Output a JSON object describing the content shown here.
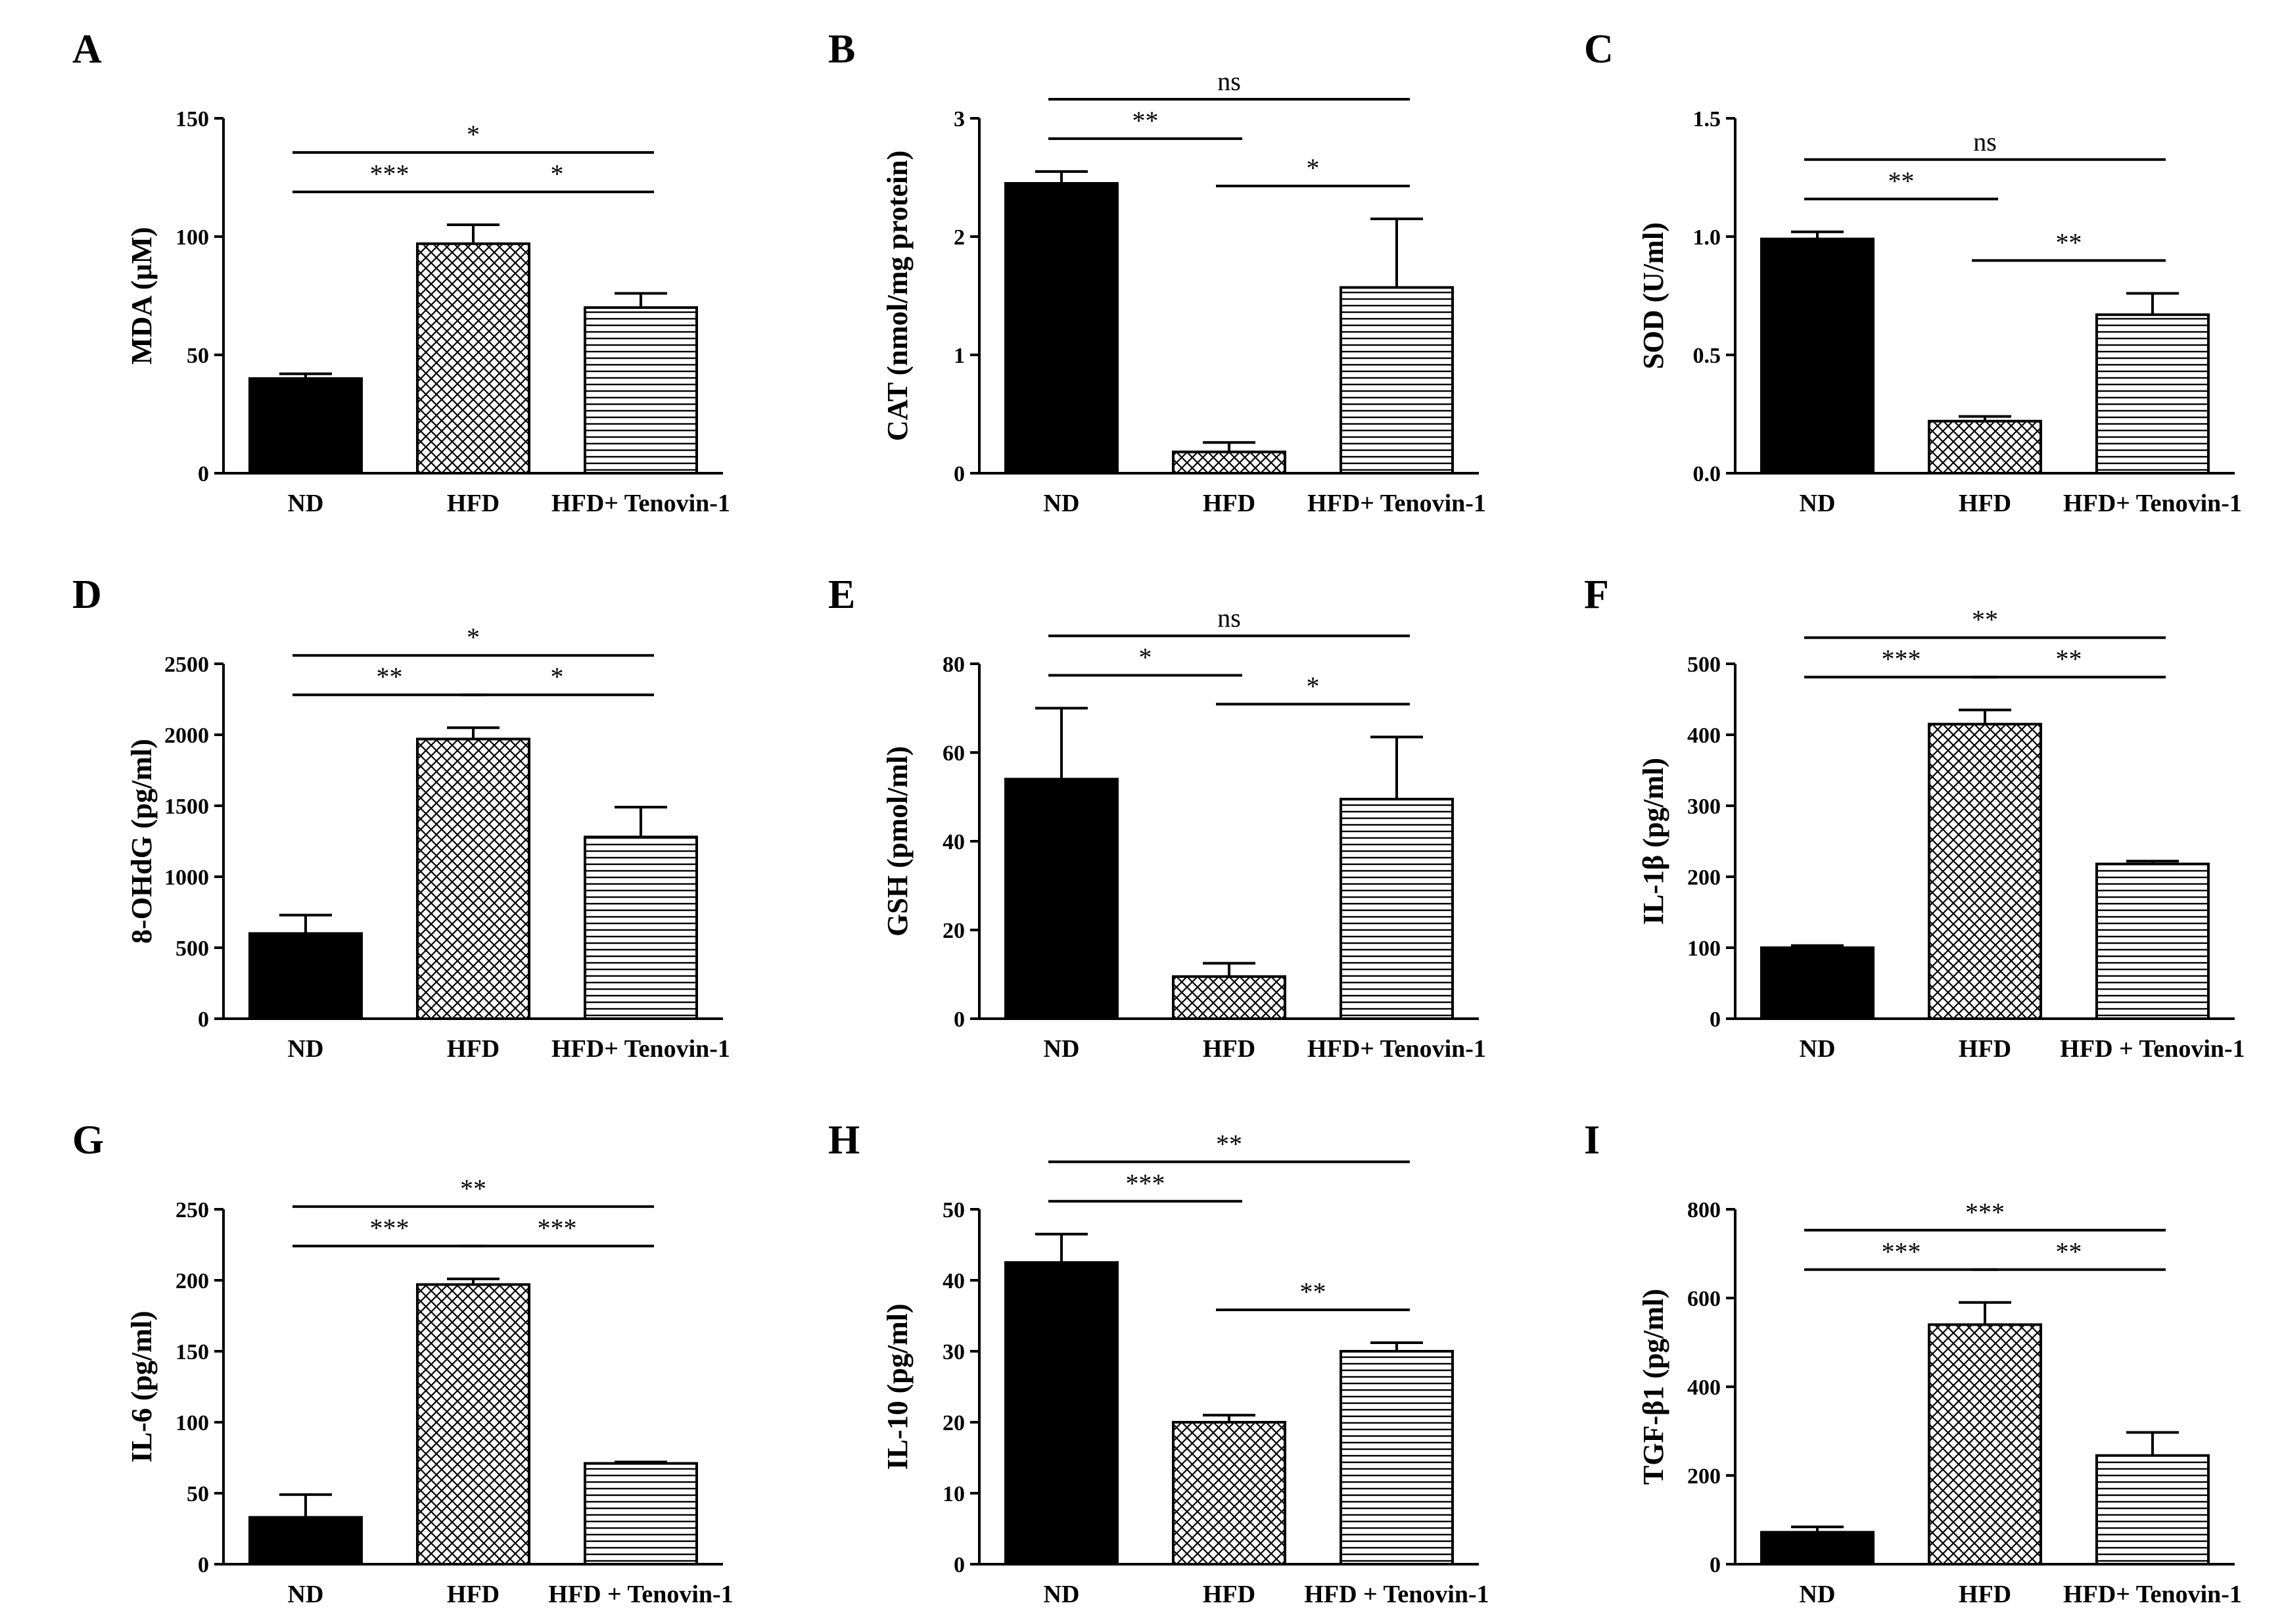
{
  "chart_data": [
    {
      "panel": "A",
      "type": "bar",
      "ylabel": "MDA (μM)",
      "ylim": [
        0,
        150
      ],
      "yticks": [
        "0",
        "50",
        "100",
        "150"
      ],
      "categories": [
        "ND",
        "HFD",
        "HFD+ Tenovin-1"
      ],
      "values": [
        40,
        97,
        70
      ],
      "errors": [
        2,
        8,
        6
      ],
      "patterns": [
        "solid",
        "cross",
        "hlines"
      ],
      "sig": [
        {
          "a": 0,
          "b": 1,
          "text": "***"
        },
        {
          "a": 1,
          "b": 2,
          "text": "*"
        },
        {
          "a": 0,
          "b": 2,
          "text": "*"
        }
      ]
    },
    {
      "panel": "B",
      "type": "bar",
      "ylabel": "CAT (nmol/mg protein)",
      "ylim": [
        0,
        3
      ],
      "yticks": [
        "0",
        "1",
        "2",
        "3"
      ],
      "categories": [
        "ND",
        "HFD",
        "HFD+ Tenovin-1"
      ],
      "values": [
        2.45,
        0.18,
        1.57
      ],
      "errors": [
        0.1,
        0.08,
        0.58
      ],
      "patterns": [
        "solid",
        "cross",
        "hlines"
      ],
      "sig": [
        {
          "a": 0,
          "b": 1,
          "text": "**"
        },
        {
          "a": 1,
          "b": 2,
          "text": "*"
        },
        {
          "a": 0,
          "b": 2,
          "text": "ns"
        }
      ]
    },
    {
      "panel": "C",
      "type": "bar",
      "ylabel": "SOD (U/ml)",
      "ylim": [
        0,
        1.5
      ],
      "yticks": [
        "0.0",
        "0.5",
        "1.0",
        "1.5"
      ],
      "categories": [
        "ND",
        "HFD",
        "HFD+ Tenovin-1"
      ],
      "values": [
        0.99,
        0.22,
        0.67
      ],
      "errors": [
        0.03,
        0.02,
        0.09
      ],
      "patterns": [
        "solid",
        "cross",
        "hlines"
      ],
      "sig": [
        {
          "a": 0,
          "b": 1,
          "text": "**"
        },
        {
          "a": 1,
          "b": 2,
          "text": "**"
        },
        {
          "a": 0,
          "b": 2,
          "text": "ns"
        }
      ]
    },
    {
      "panel": "D",
      "type": "bar",
      "ylabel": "8-OHdG (pg/ml)",
      "ylim": [
        0,
        2500
      ],
      "yticks": [
        "0",
        "500",
        "1000",
        "1500",
        "2000",
        "2500"
      ],
      "categories": [
        "ND",
        "HFD",
        "HFD+ Tenovin-1"
      ],
      "values": [
        600,
        1970,
        1280
      ],
      "errors": [
        130,
        80,
        210
      ],
      "patterns": [
        "solid",
        "cross",
        "hlines"
      ],
      "sig": [
        {
          "a": 0,
          "b": 1,
          "text": "**"
        },
        {
          "a": 1,
          "b": 2,
          "text": "*"
        },
        {
          "a": 0,
          "b": 2,
          "text": "*"
        }
      ]
    },
    {
      "panel": "E",
      "type": "bar",
      "ylabel": "GSH (pmol/ml)",
      "ylim": [
        0,
        80
      ],
      "yticks": [
        "0",
        "20",
        "40",
        "60",
        "80"
      ],
      "categories": [
        "ND",
        "HFD",
        "HFD+ Tenovin-1"
      ],
      "values": [
        54,
        9.5,
        49.5
      ],
      "errors": [
        16,
        3,
        14
      ],
      "patterns": [
        "solid",
        "cross",
        "hlines"
      ],
      "sig": [
        {
          "a": 0,
          "b": 1,
          "text": "*"
        },
        {
          "a": 1,
          "b": 2,
          "text": "*"
        },
        {
          "a": 0,
          "b": 2,
          "text": "ns"
        }
      ]
    },
    {
      "panel": "F",
      "type": "bar",
      "ylabel": "IL-1β (pg/ml)",
      "ylim": [
        0,
        500
      ],
      "yticks": [
        "0",
        "100",
        "200",
        "300",
        "400",
        "500"
      ],
      "categories": [
        "ND",
        "HFD",
        "HFD + Tenovin-1"
      ],
      "values": [
        100,
        415,
        218
      ],
      "errors": [
        3,
        20,
        4
      ],
      "patterns": [
        "solid",
        "cross",
        "hlines"
      ],
      "sig": [
        {
          "a": 0,
          "b": 1,
          "text": "***"
        },
        {
          "a": 1,
          "b": 2,
          "text": "**"
        },
        {
          "a": 0,
          "b": 2,
          "text": "**"
        }
      ]
    },
    {
      "panel": "G",
      "type": "bar",
      "ylabel": "IL-6 (pg/ml)",
      "ylim": [
        0,
        250
      ],
      "yticks": [
        "0",
        "50",
        "100",
        "150",
        "200",
        "250"
      ],
      "categories": [
        "ND",
        "HFD",
        "HFD + Tenovin-1"
      ],
      "values": [
        33,
        197,
        71
      ],
      "errors": [
        16,
        4,
        1
      ],
      "patterns": [
        "solid",
        "cross",
        "hlines"
      ],
      "sig": [
        {
          "a": 0,
          "b": 1,
          "text": "***"
        },
        {
          "a": 1,
          "b": 2,
          "text": "***"
        },
        {
          "a": 0,
          "b": 2,
          "text": "**"
        }
      ]
    },
    {
      "panel": "H",
      "type": "bar",
      "ylabel": "IL-10 (pg/ml)",
      "ylim": [
        0,
        50
      ],
      "yticks": [
        "0",
        "10",
        "20",
        "30",
        "40",
        "50"
      ],
      "categories": [
        "ND",
        "HFD",
        "HFD + Tenovin-1"
      ],
      "values": [
        42.5,
        20,
        30
      ],
      "errors": [
        4,
        1,
        1.2
      ],
      "patterns": [
        "solid",
        "cross",
        "hlines"
      ],
      "sig": [
        {
          "a": 0,
          "b": 1,
          "text": "***"
        },
        {
          "a": 1,
          "b": 2,
          "text": "**"
        },
        {
          "a": 0,
          "b": 2,
          "text": "**"
        }
      ]
    },
    {
      "panel": "I",
      "type": "bar",
      "ylabel": "TGF-β1 (pg/ml)",
      "ylim": [
        0,
        800
      ],
      "yticks": [
        "0",
        "200",
        "400",
        "600",
        "800"
      ],
      "categories": [
        "ND",
        "HFD",
        "HFD+ Tenovin-1"
      ],
      "values": [
        72,
        540,
        245
      ],
      "errors": [
        12,
        50,
        52
      ],
      "patterns": [
        "solid",
        "cross",
        "hlines"
      ],
      "sig": [
        {
          "a": 0,
          "b": 1,
          "text": "***"
        },
        {
          "a": 1,
          "b": 2,
          "text": "**"
        },
        {
          "a": 0,
          "b": 2,
          "text": "***"
        }
      ]
    }
  ]
}
